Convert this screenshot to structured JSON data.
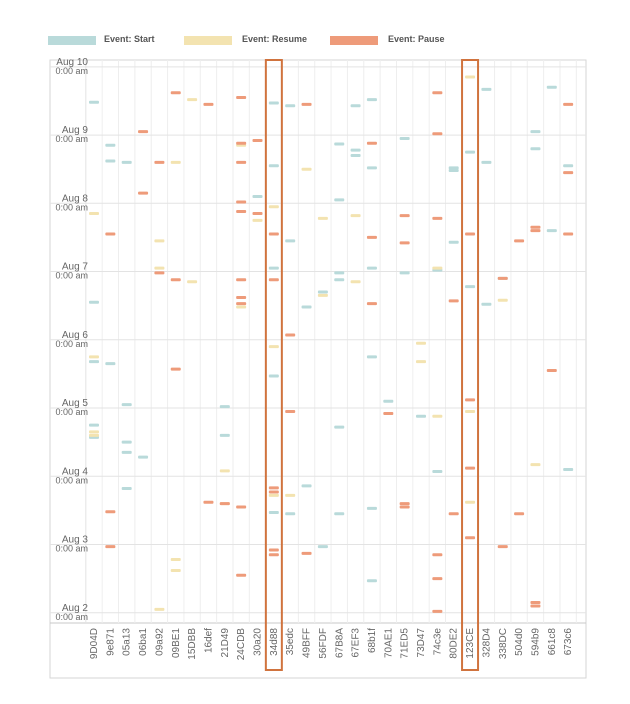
{
  "legend": [
    {
      "label": "Event: Start",
      "color": "#b9dada"
    },
    {
      "label": "Event: Resume",
      "color": "#f3e3b0"
    },
    {
      "label": "Event: Pause",
      "color": "#ee9b7a"
    }
  ],
  "chart_data": {
    "type": "timeline",
    "title": "",
    "xlabel": "",
    "ylabel": "",
    "highlighted_categories": [
      "34d88",
      "123CE"
    ],
    "highlight_color": "#d0733e",
    "categories": [
      "9D04D",
      "9e871",
      "05a13",
      "06ba1",
      "09a92",
      "09BE1",
      "15DBB",
      "16def",
      "21D49",
      "24CDB",
      "30a20",
      "34d88",
      "35edc",
      "49BFF",
      "56FDF",
      "67B8A",
      "67EF3",
      "68b1f",
      "70AE1",
      "71ED5",
      "73D47",
      "74c3e",
      "80DE2",
      "123CE",
      "328D4",
      "338DC",
      "504d0",
      "594b9",
      "661c8",
      "673c6"
    ],
    "y_axis": {
      "direction": "down",
      "unit": "days since Aug 2, 0:00 am",
      "range": [
        -0.15,
        8.1
      ],
      "ticks": [
        {
          "value": 8,
          "date": "Aug 10",
          "time": "0:00 am"
        },
        {
          "value": 7,
          "date": "Aug 9",
          "time": "0:00 am"
        },
        {
          "value": 6,
          "date": "Aug 8",
          "time": "0:00 am"
        },
        {
          "value": 5,
          "date": "Aug 7",
          "time": "0:00 am"
        },
        {
          "value": 4,
          "date": "Aug 6",
          "time": "0:00 am"
        },
        {
          "value": 3,
          "date": "Aug 5",
          "time": "0:00 am"
        },
        {
          "value": 2,
          "date": "Aug 4",
          "time": "0:00 am"
        },
        {
          "value": 1,
          "date": "Aug 3",
          "time": "0:00 am"
        },
        {
          "value": 0,
          "date": "Aug 2",
          "time": "0:00 am"
        }
      ]
    },
    "series": [
      {
        "name": "Event: Start",
        "color": "#b9dada",
        "events": [
          {
            "category": "9D04D",
            "t": [
              7.48,
              4.55,
              2.57,
              3.68,
              2.75
            ]
          },
          {
            "category": "9e871",
            "t": [
              6.85,
              6.62,
              3.65
            ]
          },
          {
            "category": "05a13",
            "t": [
              6.6,
              3.05,
              2.5,
              2.35,
              1.82
            ]
          },
          {
            "category": "06ba1",
            "t": [
              2.28
            ]
          },
          {
            "category": "21D49",
            "t": [
              2.6,
              3.02
            ]
          },
          {
            "category": "30a20",
            "t": [
              6.1
            ]
          },
          {
            "category": "34d88",
            "t": [
              7.47,
              6.55,
              5.05,
              3.47,
              1.47
            ]
          },
          {
            "category": "35edc",
            "t": [
              7.43,
              5.45,
              1.45
            ]
          },
          {
            "category": "49BFF",
            "t": [
              4.48,
              1.86
            ]
          },
          {
            "category": "56FDF",
            "t": [
              4.7,
              0.97
            ]
          },
          {
            "category": "67B8A",
            "t": [
              6.87,
              6.05,
              4.88,
              4.98,
              2.72,
              1.45
            ]
          },
          {
            "category": "67EF3",
            "t": [
              7.43,
              6.78,
              6.7
            ]
          },
          {
            "category": "68b1f",
            "t": [
              7.52,
              6.52,
              5.05,
              3.75,
              1.53,
              0.47
            ]
          },
          {
            "category": "70AE1",
            "t": [
              3.1
            ]
          },
          {
            "category": "71ED5",
            "t": [
              6.95,
              4.98
            ]
          },
          {
            "category": "73D47",
            "t": [
              2.88
            ]
          },
          {
            "category": "74c3e",
            "t": [
              5.02,
              2.07
            ]
          },
          {
            "category": "80DE2",
            "t": [
              6.52,
              6.48,
              5.43
            ]
          },
          {
            "category": "123CE",
            "t": [
              6.75,
              4.78
            ]
          },
          {
            "category": "328D4",
            "t": [
              7.67,
              6.6,
              4.52
            ]
          },
          {
            "category": "338DC",
            "t": [
              4.9
            ]
          },
          {
            "category": "594b9",
            "t": [
              7.05,
              6.8
            ]
          },
          {
            "category": "661c8",
            "t": [
              7.7,
              5.6
            ]
          },
          {
            "category": "673c6",
            "t": [
              2.1,
              6.55
            ]
          }
        ]
      },
      {
        "name": "Event: Resume",
        "color": "#f3e3b0",
        "events": [
          {
            "category": "9D04D",
            "t": [
              5.85,
              3.75,
              2.6,
              2.65
            ]
          },
          {
            "category": "09a92",
            "t": [
              5.45,
              5.05,
              0.05
            ]
          },
          {
            "category": "09BE1",
            "t": [
              6.6,
              0.78,
              0.62
            ]
          },
          {
            "category": "15DBB",
            "t": [
              7.52,
              4.85
            ]
          },
          {
            "category": "21D49",
            "t": [
              2.08,
              1.6
            ]
          },
          {
            "category": "24CDB",
            "t": [
              6.85,
              4.48
            ]
          },
          {
            "category": "30a20",
            "t": [
              5.75
            ]
          },
          {
            "category": "34d88",
            "t": [
              5.95,
              3.9,
              1.72
            ]
          },
          {
            "category": "35edc",
            "t": [
              1.72
            ]
          },
          {
            "category": "49BFF",
            "t": [
              6.5
            ]
          },
          {
            "category": "56FDF",
            "t": [
              4.65,
              5.78
            ]
          },
          {
            "category": "67EF3",
            "t": [
              5.82,
              4.85
            ]
          },
          {
            "category": "73D47",
            "t": [
              3.95,
              3.68
            ]
          },
          {
            "category": "74c3e",
            "t": [
              5.05,
              2.88
            ]
          },
          {
            "category": "123CE",
            "t": [
              7.85,
              2.95,
              1.62
            ]
          },
          {
            "category": "338DC",
            "t": [
              4.58
            ]
          },
          {
            "category": "594b9",
            "t": [
              2.17
            ]
          }
        ]
      },
      {
        "name": "Event: Pause",
        "color": "#ee9b7a",
        "events": [
          {
            "category": "9e871",
            "t": [
              5.55,
              1.48,
              0.97
            ]
          },
          {
            "category": "06ba1",
            "t": [
              6.15,
              7.05
            ]
          },
          {
            "category": "09a92",
            "t": [
              6.6,
              4.98
            ]
          },
          {
            "category": "09BE1",
            "t": [
              7.62,
              4.88,
              3.57
            ]
          },
          {
            "category": "16def",
            "t": [
              7.45,
              1.62
            ]
          },
          {
            "category": "21D49",
            "t": [
              1.6
            ]
          },
          {
            "category": "24CDB",
            "t": [
              7.55,
              6.88,
              6.6,
              6.02,
              5.88,
              4.88,
              4.62,
              4.53,
              1.55,
              0.55
            ]
          },
          {
            "category": "30a20",
            "t": [
              6.92,
              5.85
            ]
          },
          {
            "category": "34d88",
            "t": [
              5.55,
              4.88,
              1.83,
              1.77,
              0.92,
              0.85
            ]
          },
          {
            "category": "35edc",
            "t": [
              4.07,
              2.95
            ]
          },
          {
            "category": "49BFF",
            "t": [
              7.45,
              0.87
            ]
          },
          {
            "category": "68b1f",
            "t": [
              6.88,
              5.5,
              4.53
            ]
          },
          {
            "category": "70AE1",
            "t": [
              2.92
            ]
          },
          {
            "category": "71ED5",
            "t": [
              5.82,
              5.42,
              1.6,
              1.55
            ]
          },
          {
            "category": "74c3e",
            "t": [
              7.62,
              7.02,
              5.78,
              0.85,
              0.5,
              0.02
            ]
          },
          {
            "category": "80DE2",
            "t": [
              4.57,
              1.45
            ]
          },
          {
            "category": "123CE",
            "t": [
              5.55,
              3.12,
              2.12,
              1.1
            ]
          },
          {
            "category": "338DC",
            "t": [
              4.9,
              0.97
            ]
          },
          {
            "category": "504d0",
            "t": [
              5.45,
              1.45
            ]
          },
          {
            "category": "594b9",
            "t": [
              5.65,
              5.6,
              0.15,
              0.1
            ]
          },
          {
            "category": "661c8",
            "t": [
              3.55
            ]
          },
          {
            "category": "673c6",
            "t": [
              7.45,
              6.45,
              5.55
            ]
          }
        ]
      }
    ]
  }
}
